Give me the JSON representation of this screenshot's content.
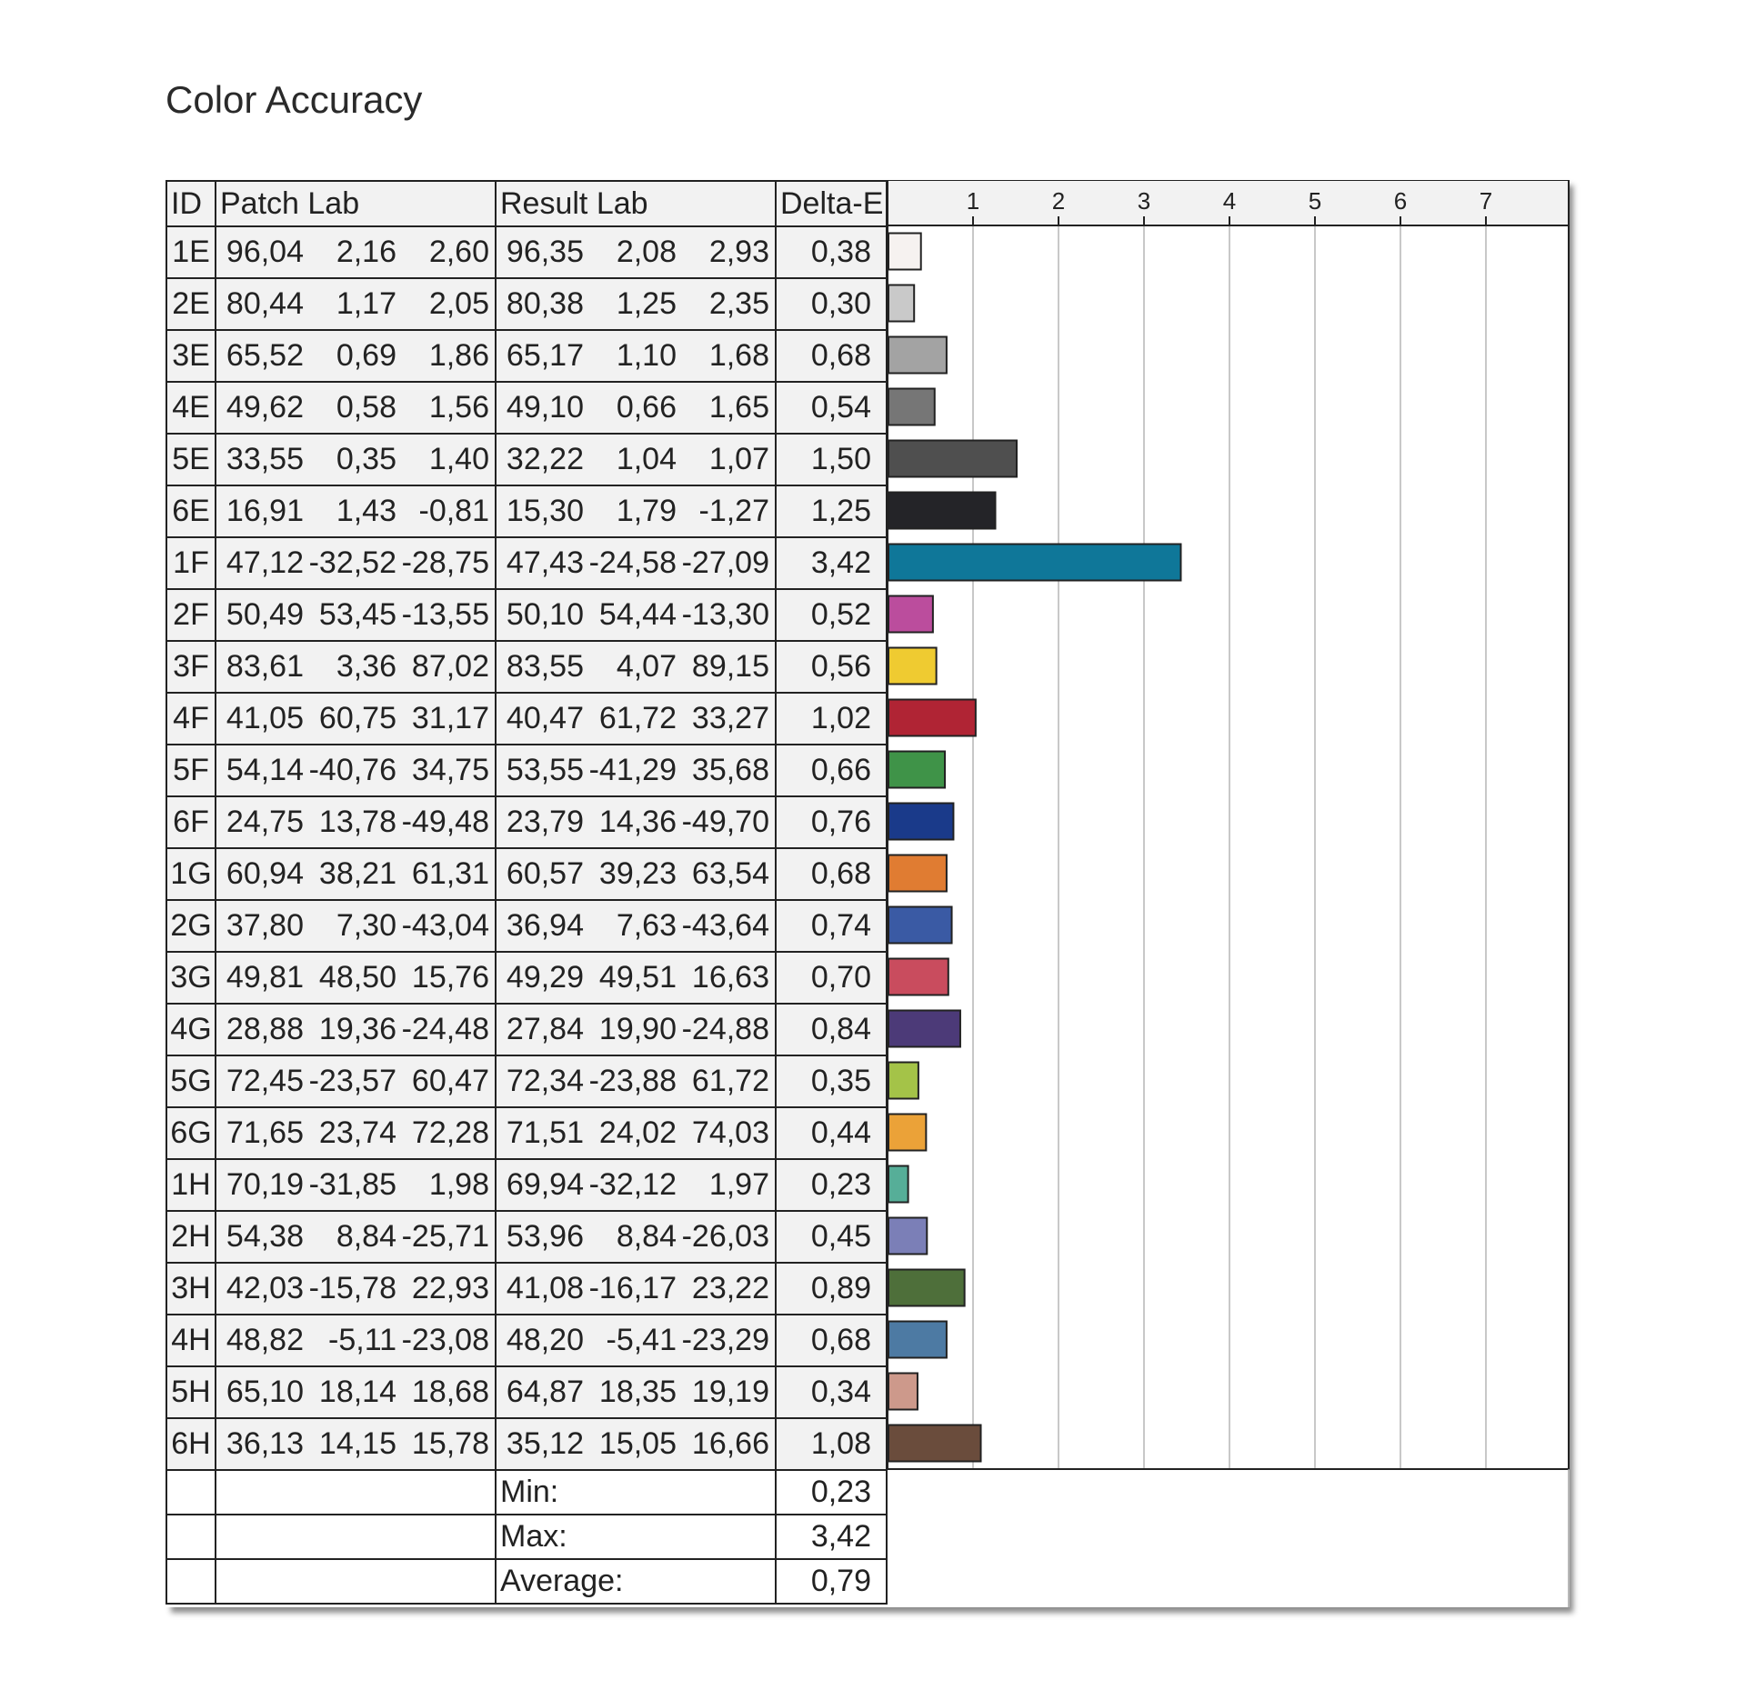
{
  "title": "Color Accuracy",
  "headers": {
    "id": "ID",
    "patch": "Patch Lab",
    "result": "Result Lab",
    "delta": "Delta-E"
  },
  "chart_data": {
    "type": "bar",
    "orientation": "horizontal",
    "title": "Color Accuracy",
    "xlim": [
      0,
      7.95
    ],
    "ticks": [
      "1",
      "2",
      "3",
      "4",
      "5",
      "6",
      "7"
    ],
    "grid": true,
    "categories": [
      "1E",
      "2E",
      "3E",
      "4E",
      "5E",
      "6E",
      "1F",
      "2F",
      "3F",
      "4F",
      "5F",
      "6F",
      "1G",
      "2G",
      "3G",
      "4G",
      "5G",
      "6G",
      "1H",
      "2H",
      "3H",
      "4H",
      "5H",
      "6H"
    ],
    "values": [
      0.38,
      0.3,
      0.68,
      0.54,
      1.5,
      1.25,
      3.42,
      0.52,
      0.56,
      1.02,
      0.66,
      0.76,
      0.68,
      0.74,
      0.7,
      0.84,
      0.35,
      0.44,
      0.23,
      0.45,
      0.89,
      0.68,
      0.34,
      1.08
    ],
    "bar_colors": [
      "#f6f2f0",
      "#c9c9c9",
      "#a3a3a3",
      "#767676",
      "#4f4f4f",
      "#242428",
      "#0f7799",
      "#bb4d9d",
      "#efcb31",
      "#b02434",
      "#3f9348",
      "#1a3a8a",
      "#e07c32",
      "#3a5aa4",
      "#c94c5e",
      "#4c3a78",
      "#a4c348",
      "#eba238",
      "#56ae98",
      "#7b7fb7",
      "#4e6f3a",
      "#4d7aa3",
      "#cd998b",
      "#6a4c3c"
    ],
    "rows": [
      {
        "id": "1E",
        "patch": [
          "96,04",
          "2,16",
          "2,60"
        ],
        "result": [
          "96,35",
          "2,08",
          "2,93"
        ],
        "de": "0,38"
      },
      {
        "id": "2E",
        "patch": [
          "80,44",
          "1,17",
          "2,05"
        ],
        "result": [
          "80,38",
          "1,25",
          "2,35"
        ],
        "de": "0,30"
      },
      {
        "id": "3E",
        "patch": [
          "65,52",
          "0,69",
          "1,86"
        ],
        "result": [
          "65,17",
          "1,10",
          "1,68"
        ],
        "de": "0,68"
      },
      {
        "id": "4E",
        "patch": [
          "49,62",
          "0,58",
          "1,56"
        ],
        "result": [
          "49,10",
          "0,66",
          "1,65"
        ],
        "de": "0,54"
      },
      {
        "id": "5E",
        "patch": [
          "33,55",
          "0,35",
          "1,40"
        ],
        "result": [
          "32,22",
          "1,04",
          "1,07"
        ],
        "de": "1,50"
      },
      {
        "id": "6E",
        "patch": [
          "16,91",
          "1,43",
          "-0,81"
        ],
        "result": [
          "15,30",
          "1,79",
          "-1,27"
        ],
        "de": "1,25"
      },
      {
        "id": "1F",
        "patch": [
          "47,12",
          "-32,52",
          "-28,75"
        ],
        "result": [
          "47,43",
          "-24,58",
          "-27,09"
        ],
        "de": "3,42"
      },
      {
        "id": "2F",
        "patch": [
          "50,49",
          "53,45",
          "-13,55"
        ],
        "result": [
          "50,10",
          "54,44",
          "-13,30"
        ],
        "de": "0,52"
      },
      {
        "id": "3F",
        "patch": [
          "83,61",
          "3,36",
          "87,02"
        ],
        "result": [
          "83,55",
          "4,07",
          "89,15"
        ],
        "de": "0,56"
      },
      {
        "id": "4F",
        "patch": [
          "41,05",
          "60,75",
          "31,17"
        ],
        "result": [
          "40,47",
          "61,72",
          "33,27"
        ],
        "de": "1,02"
      },
      {
        "id": "5F",
        "patch": [
          "54,14",
          "-40,76",
          "34,75"
        ],
        "result": [
          "53,55",
          "-41,29",
          "35,68"
        ],
        "de": "0,66"
      },
      {
        "id": "6F",
        "patch": [
          "24,75",
          "13,78",
          "-49,48"
        ],
        "result": [
          "23,79",
          "14,36",
          "-49,70"
        ],
        "de": "0,76"
      },
      {
        "id": "1G",
        "patch": [
          "60,94",
          "38,21",
          "61,31"
        ],
        "result": [
          "60,57",
          "39,23",
          "63,54"
        ],
        "de": "0,68"
      },
      {
        "id": "2G",
        "patch": [
          "37,80",
          "7,30",
          "-43,04"
        ],
        "result": [
          "36,94",
          "7,63",
          "-43,64"
        ],
        "de": "0,74"
      },
      {
        "id": "3G",
        "patch": [
          "49,81",
          "48,50",
          "15,76"
        ],
        "result": [
          "49,29",
          "49,51",
          "16,63"
        ],
        "de": "0,70"
      },
      {
        "id": "4G",
        "patch": [
          "28,88",
          "19,36",
          "-24,48"
        ],
        "result": [
          "27,84",
          "19,90",
          "-24,88"
        ],
        "de": "0,84"
      },
      {
        "id": "5G",
        "patch": [
          "72,45",
          "-23,57",
          "60,47"
        ],
        "result": [
          "72,34",
          "-23,88",
          "61,72"
        ],
        "de": "0,35"
      },
      {
        "id": "6G",
        "patch": [
          "71,65",
          "23,74",
          "72,28"
        ],
        "result": [
          "71,51",
          "24,02",
          "74,03"
        ],
        "de": "0,44"
      },
      {
        "id": "1H",
        "patch": [
          "70,19",
          "-31,85",
          "1,98"
        ],
        "result": [
          "69,94",
          "-32,12",
          "1,97"
        ],
        "de": "0,23"
      },
      {
        "id": "2H",
        "patch": [
          "54,38",
          "8,84",
          "-25,71"
        ],
        "result": [
          "53,96",
          "8,84",
          "-26,03"
        ],
        "de": "0,45"
      },
      {
        "id": "3H",
        "patch": [
          "42,03",
          "-15,78",
          "22,93"
        ],
        "result": [
          "41,08",
          "-16,17",
          "23,22"
        ],
        "de": "0,89"
      },
      {
        "id": "4H",
        "patch": [
          "48,82",
          "-5,11",
          "-23,08"
        ],
        "result": [
          "48,20",
          "-5,41",
          "-23,29"
        ],
        "de": "0,68"
      },
      {
        "id": "5H",
        "patch": [
          "65,10",
          "18,14",
          "18,68"
        ],
        "result": [
          "64,87",
          "18,35",
          "19,19"
        ],
        "de": "0,34"
      },
      {
        "id": "6H",
        "patch": [
          "36,13",
          "14,15",
          "15,78"
        ],
        "result": [
          "35,12",
          "15,05",
          "16,66"
        ],
        "de": "1,08"
      }
    ],
    "summary": [
      {
        "label": "Min:",
        "value": "0,23"
      },
      {
        "label": "Max:",
        "value": "3,42"
      },
      {
        "label": "Average:",
        "value": "0,79"
      }
    ]
  }
}
